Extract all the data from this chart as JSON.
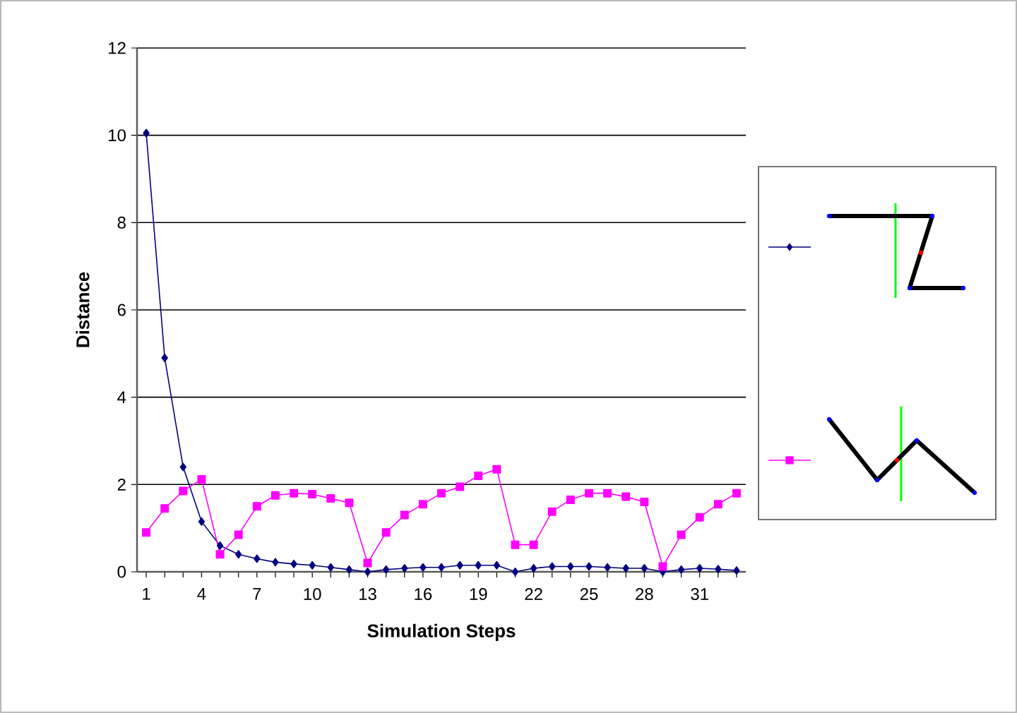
{
  "chart_data": {
    "type": "line",
    "xlabel": "Simulation Steps",
    "ylabel": "Distance",
    "categories": [
      "1",
      null,
      null,
      "4",
      null,
      null,
      "7",
      null,
      null,
      "10",
      null,
      null,
      "13",
      null,
      null,
      "16",
      null,
      null,
      "19",
      null,
      null,
      "22",
      null,
      null,
      "25",
      null,
      null,
      "28",
      null,
      null,
      "31",
      null,
      null
    ],
    "series": [
      {
        "color": "#000080",
        "marker": "diamond",
        "values": [
          10.05,
          4.9,
          2.4,
          1.15,
          0.6,
          0.4,
          0.3,
          0.22,
          0.18,
          0.15,
          0.1,
          0.05,
          0.0,
          0.05,
          0.08,
          0.1,
          0.1,
          0.15,
          0.15,
          0.15,
          0.0,
          0.08,
          0.12,
          0.12,
          0.12,
          0.1,
          0.08,
          0.08,
          0.0,
          0.05,
          0.08,
          0.06,
          0.03
        ]
      },
      {
        "color": "#ff00ff",
        "marker": "square",
        "values": [
          0.9,
          1.45,
          1.85,
          2.12,
          0.4,
          0.85,
          1.5,
          1.75,
          1.8,
          1.78,
          1.68,
          1.58,
          0.2,
          0.9,
          1.3,
          1.55,
          1.8,
          1.95,
          2.2,
          2.35,
          0.62,
          0.62,
          1.38,
          1.65,
          1.8,
          1.8,
          1.72,
          1.6,
          0.12,
          0.85,
          1.25,
          1.55,
          1.8
        ]
      }
    ],
    "ylim": [
      0,
      12
    ],
    "yticks": [
      0,
      2,
      4,
      6,
      8,
      10,
      12
    ],
    "grid": "y",
    "line_style": "solid"
  }
}
